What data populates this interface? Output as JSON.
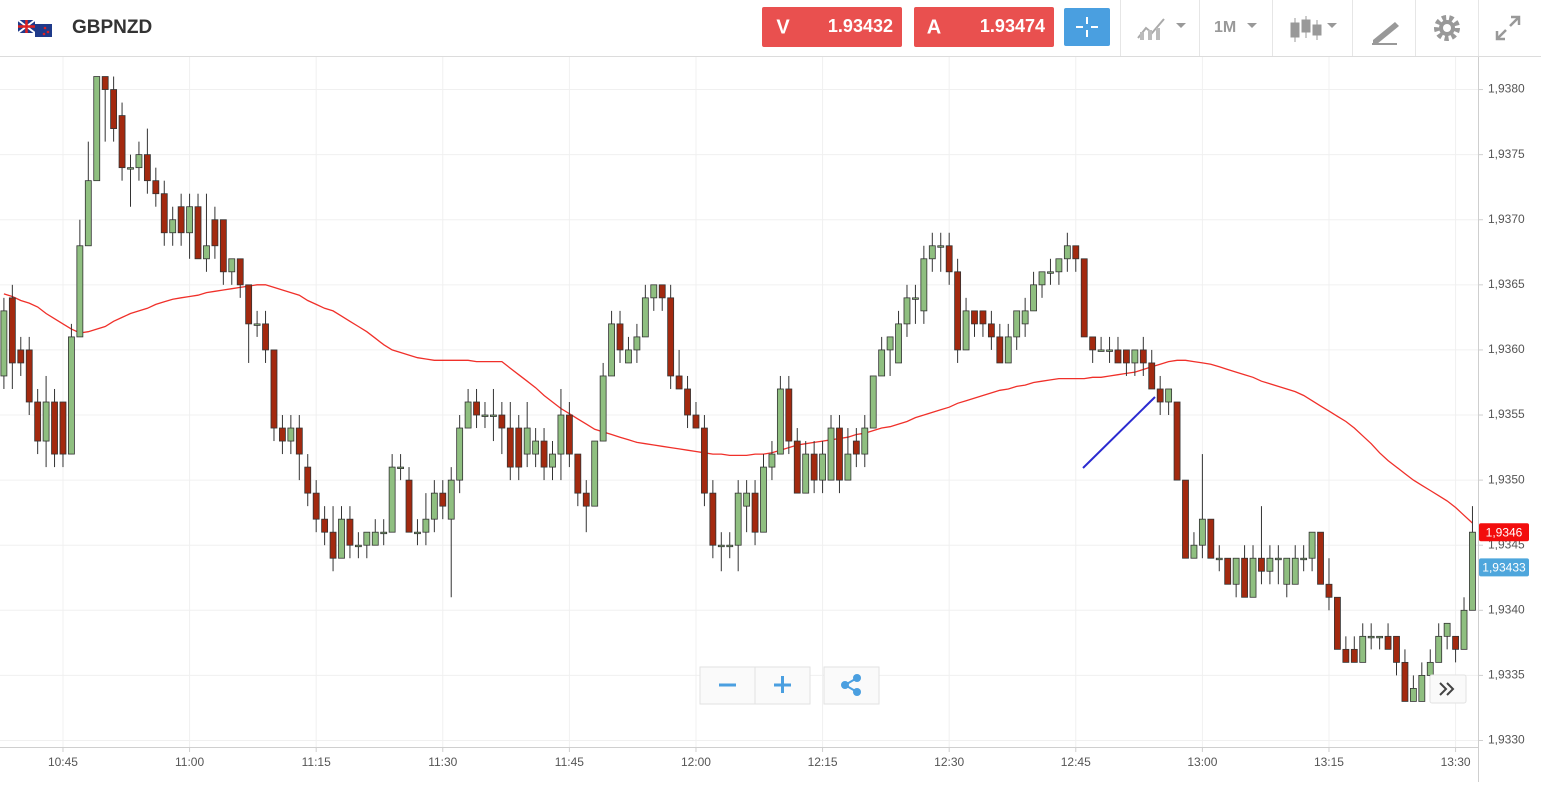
{
  "toolbar": {
    "symbol": "GBPNZD",
    "sell_label": "V",
    "sell_price": 1.93432,
    "buy_label": "A",
    "buy_price": 1.93474,
    "timeframe": "1M"
  },
  "chart_data": {
    "type": "candlestick",
    "up_color": "#8fbf80",
    "down_color": "#a3290f",
    "grid": true,
    "x": [
      "10:38",
      "10:39",
      "10:40",
      "10:41",
      "10:42",
      "10:43",
      "10:44",
      "10:45",
      "10:46",
      "10:47",
      "10:48",
      "10:49",
      "10:50",
      "10:51",
      "10:52",
      "10:53",
      "10:54",
      "10:55",
      "10:56",
      "10:57",
      "10:58",
      "10:59",
      "11:00",
      "11:01",
      "11:02",
      "11:03",
      "11:04",
      "11:05",
      "11:06",
      "11:07",
      "11:08",
      "11:09",
      "11:10",
      "11:11",
      "11:12",
      "11:13",
      "11:14",
      "11:15",
      "11:16",
      "11:17",
      "11:18",
      "11:19",
      "11:20",
      "11:21",
      "11:22",
      "11:23",
      "11:24",
      "11:25",
      "11:26",
      "11:27",
      "11:28",
      "11:29",
      "11:30",
      "11:31",
      "11:32",
      "11:33",
      "11:34",
      "11:35",
      "11:36",
      "11:37",
      "11:38",
      "11:39",
      "11:40",
      "11:41",
      "11:42",
      "11:43",
      "11:44",
      "11:45",
      "11:46",
      "11:47",
      "11:48",
      "11:49",
      "11:50",
      "11:51",
      "11:52",
      "11:53",
      "11:54",
      "11:55",
      "11:56",
      "11:57",
      "11:58",
      "11:59",
      "12:00",
      "12:01",
      "12:02",
      "12:03",
      "12:04",
      "12:05",
      "12:06",
      "12:07",
      "12:08",
      "12:09",
      "12:10",
      "12:11",
      "12:12",
      "12:13",
      "12:14",
      "12:15",
      "12:16",
      "12:17",
      "12:18",
      "12:19",
      "12:20",
      "12:21",
      "12:22",
      "12:23",
      "12:24",
      "12:25",
      "12:26",
      "12:27",
      "12:28",
      "12:29",
      "12:30",
      "12:31",
      "12:32",
      "12:33",
      "12:34",
      "12:35",
      "12:36",
      "12:37",
      "12:38",
      "12:39",
      "12:40",
      "12:41",
      "12:42",
      "12:43",
      "12:44",
      "12:45",
      "12:46",
      "12:47",
      "12:48",
      "12:49",
      "12:50",
      "12:51",
      "12:52",
      "12:53",
      "12:54",
      "12:55",
      "12:56",
      "12:57",
      "12:58",
      "12:59",
      "13:00",
      "13:01",
      "13:02",
      "13:03",
      "13:04",
      "13:05",
      "13:06",
      "13:07",
      "13:08",
      "13:09",
      "13:10",
      "13:11",
      "13:12",
      "13:13",
      "13:14",
      "13:15",
      "13:16",
      "13:17",
      "13:18",
      "13:19",
      "13:20",
      "13:21",
      "13:22",
      "13:23",
      "13:24",
      "13:25",
      "13:26",
      "13:27",
      "13:28",
      "13:29",
      "13:30",
      "13:31",
      "13:32"
    ],
    "open": [
      1.9358,
      1.9364,
      1.936,
      1.936,
      1.9356,
      1.9353,
      1.9356,
      1.9356,
      1.9352,
      1.9361,
      1.9368,
      1.9373,
      1.9381,
      1.938,
      1.9378,
      1.9374,
      1.9374,
      1.9375,
      1.9373,
      1.9372,
      1.9369,
      1.9371,
      1.9369,
      1.9371,
      1.9367,
      1.937,
      1.937,
      1.9366,
      1.9367,
      1.9365,
      1.9362,
      1.9362,
      1.936,
      1.9354,
      1.9353,
      1.9354,
      1.9351,
      1.9349,
      1.9347,
      1.9346,
      1.9344,
      1.9347,
      1.9345,
      1.9345,
      1.9345,
      1.9346,
      1.9346,
      1.9351,
      1.935,
      1.9346,
      1.9346,
      1.9347,
      1.9349,
      1.9347,
      1.935,
      1.9354,
      1.9356,
      1.9355,
      1.9355,
      1.9355,
      1.9354,
      1.9354,
      1.9352,
      1.9352,
      1.9353,
      1.9351,
      1.9352,
      1.9355,
      1.9352,
      1.9349,
      1.9348,
      1.9353,
      1.9358,
      1.9362,
      1.9359,
      1.936,
      1.9361,
      1.9364,
      1.9365,
      1.9364,
      1.9358,
      1.9357,
      1.9355,
      1.9354,
      1.9349,
      1.9345,
      1.9345,
      1.9345,
      1.9348,
      1.9349,
      1.9346,
      1.9351,
      1.9352,
      1.9357,
      1.9353,
      1.9349,
      1.9352,
      1.935,
      1.935,
      1.9354,
      1.935,
      1.9353,
      1.9352,
      1.9354,
      1.9358,
      1.936,
      1.9359,
      1.9362,
      1.9364,
      1.9363,
      1.9367,
      1.9368,
      1.9368,
      1.9366,
      1.936,
      1.9363,
      1.9363,
      1.9362,
      1.9361,
      1.9359,
      1.9361,
      1.9362,
      1.9363,
      1.9365,
      1.9366,
      1.9366,
      1.9367,
      1.9368,
      1.9367,
      1.9361,
      1.936,
      1.936,
      1.936,
      1.936,
      1.9359,
      1.936,
      1.9359,
      1.9357,
      1.9356,
      1.9356,
      1.935,
      1.9344,
      1.9345,
      1.9347,
      1.9344,
      1.9344,
      1.9342,
      1.9344,
      1.9341,
      1.9344,
      1.9343,
      1.9344,
      1.9342,
      1.9342,
      1.9344,
      1.9344,
      1.9346,
      1.9342,
      1.9341,
      1.9337,
      1.9337,
      1.9336,
      1.9338,
      1.9338,
      1.9338,
      1.9338,
      1.9336,
      1.9333,
      1.9333,
      1.9335,
      1.9336,
      1.9338,
      1.9338,
      1.9337,
      1.934
    ],
    "high": [
      1.9364,
      1.9365,
      1.9361,
      1.9361,
      1.9357,
      1.9358,
      1.9357,
      1.9356,
      1.9362,
      1.937,
      1.9376,
      1.9381,
      1.9381,
      1.9381,
      1.9379,
      1.9375,
      1.9376,
      1.9377,
      1.9374,
      1.9373,
      1.9371,
      1.9372,
      1.9372,
      1.9372,
      1.9372,
      1.9371,
      1.937,
      1.9367,
      1.9367,
      1.9365,
      1.9363,
      1.9363,
      1.936,
      1.9355,
      1.9355,
      1.9355,
      1.9352,
      1.935,
      1.9348,
      1.9348,
      1.9348,
      1.9348,
      1.9346,
      1.9346,
      1.9347,
      1.9347,
      1.9352,
      1.9352,
      1.9351,
      1.9347,
      1.9349,
      1.935,
      1.935,
      1.9351,
      1.9355,
      1.9357,
      1.9357,
      1.9356,
      1.9357,
      1.9356,
      1.9356,
      1.9355,
      1.9356,
      1.9354,
      1.9354,
      1.9353,
      1.9357,
      1.9356,
      1.9352,
      1.935,
      1.9353,
      1.9359,
      1.9363,
      1.9363,
      1.9361,
      1.9362,
      1.9365,
      1.9365,
      1.9365,
      1.9365,
      1.936,
      1.9358,
      1.9356,
      1.9355,
      1.935,
      1.9346,
      1.9346,
      1.935,
      1.935,
      1.935,
      1.9352,
      1.9353,
      1.9358,
      1.9358,
      1.9354,
      1.9353,
      1.9353,
      1.9353,
      1.9355,
      1.9355,
      1.9354,
      1.9354,
      1.9355,
      1.9358,
      1.9361,
      1.9361,
      1.9363,
      1.9365,
      1.9365,
      1.9368,
      1.9369,
      1.9369,
      1.9369,
      1.9367,
      1.9364,
      1.9363,
      1.9363,
      1.9363,
      1.9362,
      1.9362,
      1.9363,
      1.9364,
      1.9366,
      1.9366,
      1.9367,
      1.9367,
      1.9369,
      1.9368,
      1.9367,
      1.9361,
      1.9361,
      1.9361,
      1.9361,
      1.936,
      1.936,
      1.9361,
      1.936,
      1.9358,
      1.9357,
      1.9356,
      1.935,
      1.9346,
      1.9352,
      1.9347,
      1.9345,
      1.9344,
      1.9344,
      1.9345,
      1.9345,
      1.9348,
      1.9345,
      1.9345,
      1.9344,
      1.9345,
      1.9345,
      1.9346,
      1.9346,
      1.9344,
      1.9341,
      1.9338,
      1.9338,
      1.9339,
      1.9339,
      1.9338,
      1.9339,
      1.9338,
      1.9337,
      1.9335,
      1.9336,
      1.9337,
      1.9339,
      1.9339,
      1.9338,
      1.9341,
      1.9348
    ],
    "low": [
      1.9357,
      1.9357,
      1.9358,
      1.9355,
      1.9352,
      1.9351,
      1.9351,
      1.9351,
      1.9352,
      1.9361,
      1.9368,
      1.9373,
      1.9376,
      1.9376,
      1.9373,
      1.9371,
      1.9373,
      1.9372,
      1.9371,
      1.9368,
      1.9368,
      1.9368,
      1.9367,
      1.9367,
      1.9366,
      1.9367,
      1.9365,
      1.9365,
      1.9364,
      1.9359,
      1.9361,
      1.9359,
      1.9353,
      1.9352,
      1.9352,
      1.935,
      1.9348,
      1.9346,
      1.9345,
      1.9343,
      1.9344,
      1.9344,
      1.9344,
      1.9344,
      1.9345,
      1.9345,
      1.9346,
      1.935,
      1.9346,
      1.9345,
      1.9345,
      1.9346,
      1.9347,
      1.9341,
      1.9349,
      1.9354,
      1.9354,
      1.9354,
      1.9353,
      1.9352,
      1.935,
      1.935,
      1.9351,
      1.9351,
      1.935,
      1.935,
      1.935,
      1.9351,
      1.9348,
      1.9346,
      1.9348,
      1.9353,
      1.9358,
      1.9359,
      1.9359,
      1.9359,
      1.9361,
      1.9363,
      1.9363,
      1.9357,
      1.9357,
      1.9354,
      1.9354,
      1.9348,
      1.9344,
      1.9343,
      1.9344,
      1.9343,
      1.9346,
      1.9345,
      1.9346,
      1.935,
      1.9352,
      1.9352,
      1.9349,
      1.9349,
      1.9349,
      1.9349,
      1.935,
      1.9349,
      1.935,
      1.9351,
      1.9351,
      1.9354,
      1.9358,
      1.9358,
      1.9359,
      1.9361,
      1.9362,
      1.9362,
      1.9366,
      1.9366,
      1.9365,
      1.9359,
      1.936,
      1.9361,
      1.9361,
      1.936,
      1.9359,
      1.9359,
      1.936,
      1.9361,
      1.9363,
      1.9364,
      1.9365,
      1.9365,
      1.9366,
      1.9366,
      1.9361,
      1.9359,
      1.936,
      1.9359,
      1.9359,
      1.9358,
      1.9358,
      1.9358,
      1.9357,
      1.9355,
      1.9355,
      1.935,
      1.9344,
      1.9344,
      1.9344,
      1.9344,
      1.9343,
      1.9342,
      1.9341,
      1.9341,
      1.9341,
      1.9342,
      1.9342,
      1.9342,
      1.9341,
      1.9342,
      1.9343,
      1.9343,
      1.9342,
      1.934,
      1.9337,
      1.9336,
      1.9336,
      1.9336,
      1.9337,
      1.9337,
      1.9337,
      1.9335,
      1.9333,
      1.9333,
      1.9333,
      1.9334,
      1.9336,
      1.9337,
      1.9336,
      1.9337,
      1.934
    ],
    "close": [
      1.9363,
      1.9359,
      1.9359,
      1.9356,
      1.9353,
      1.9356,
      1.9352,
      1.9352,
      1.9361,
      1.9368,
      1.9373,
      1.9381,
      1.938,
      1.9377,
      1.9374,
      1.9374,
      1.9375,
      1.9373,
      1.9372,
      1.9369,
      1.937,
      1.9369,
      1.9371,
      1.9367,
      1.9368,
      1.9368,
      1.9366,
      1.9367,
      1.9365,
      1.9362,
      1.9362,
      1.936,
      1.9354,
      1.9353,
      1.9354,
      1.9352,
      1.9349,
      1.9347,
      1.9346,
      1.9344,
      1.9347,
      1.9345,
      1.9345,
      1.9346,
      1.9346,
      1.9346,
      1.9351,
      1.9351,
      1.9346,
      1.9346,
      1.9347,
      1.9349,
      1.9348,
      1.935,
      1.9354,
      1.9356,
      1.9355,
      1.9355,
      1.9355,
      1.9354,
      1.9351,
      1.9351,
      1.9354,
      1.9353,
      1.9351,
      1.9352,
      1.9355,
      1.9352,
      1.9349,
      1.9348,
      1.9353,
      1.9358,
      1.9362,
      1.936,
      1.936,
      1.9361,
      1.9364,
      1.9365,
      1.9364,
      1.9358,
      1.9357,
      1.9355,
      1.9354,
      1.9349,
      1.9345,
      1.9345,
      1.9345,
      1.9349,
      1.9349,
      1.9346,
      1.9351,
      1.9352,
      1.9357,
      1.9353,
      1.9349,
      1.9352,
      1.935,
      1.9352,
      1.9354,
      1.935,
      1.9352,
      1.9352,
      1.9354,
      1.9358,
      1.936,
      1.9361,
      1.9362,
      1.9364,
      1.9364,
      1.9367,
      1.9368,
      1.9368,
      1.9366,
      1.936,
      1.9363,
      1.9362,
      1.9362,
      1.9361,
      1.9359,
      1.9361,
      1.9363,
      1.9363,
      1.9365,
      1.9366,
      1.9366,
      1.9367,
      1.9368,
      1.9367,
      1.9361,
      1.936,
      1.936,
      1.936,
      1.9359,
      1.9359,
      1.936,
      1.9359,
      1.9357,
      1.9356,
      1.9357,
      1.935,
      1.9344,
      1.9345,
      1.9347,
      1.9344,
      1.9344,
      1.9342,
      1.9344,
      1.9341,
      1.9344,
      1.9343,
      1.9344,
      1.9344,
      1.9344,
      1.9344,
      1.9344,
      1.9346,
      1.9342,
      1.9341,
      1.9337,
      1.9336,
      1.9336,
      1.9338,
      1.9338,
      1.9338,
      1.9337,
      1.9336,
      1.9333,
      1.9334,
      1.9335,
      1.9336,
      1.9338,
      1.9339,
      1.9337,
      1.934,
      1.9346
    ],
    "moving_average": {
      "color": "#f0302a",
      "values": [
        1.93643,
        1.93641,
        1.93638,
        1.93636,
        1.93633,
        1.93628,
        1.93624,
        1.9362,
        1.93616,
        1.93613,
        1.93614,
        1.93616,
        1.93618,
        1.93622,
        1.93625,
        1.93628,
        1.9363,
        1.93632,
        1.93635,
        1.93637,
        1.93639,
        1.9364,
        1.93641,
        1.93642,
        1.93644,
        1.93645,
        1.93646,
        1.93647,
        1.93648,
        1.93649,
        1.9365,
        1.9365,
        1.93648,
        1.93646,
        1.93644,
        1.93642,
        1.93638,
        1.93635,
        1.93632,
        1.9363,
        1.93626,
        1.93622,
        1.93618,
        1.93614,
        1.93609,
        1.93604,
        1.936,
        1.93598,
        1.93596,
        1.93594,
        1.93593,
        1.93592,
        1.93592,
        1.93592,
        1.93592,
        1.93592,
        1.93591,
        1.93591,
        1.93591,
        1.93591,
        1.93586,
        1.93581,
        1.93576,
        1.93571,
        1.93565,
        1.9356,
        1.93555,
        1.93551,
        1.93547,
        1.93543,
        1.93539,
        1.93537,
        1.93535,
        1.93533,
        1.93531,
        1.93529,
        1.93528,
        1.93527,
        1.93526,
        1.93525,
        1.93524,
        1.93523,
        1.93522,
        1.93521,
        1.9352,
        1.9352,
        1.93519,
        1.93519,
        1.93519,
        1.9352,
        1.9352,
        1.93521,
        1.93523,
        1.93525,
        1.93527,
        1.93528,
        1.93529,
        1.9353,
        1.93531,
        1.93532,
        1.93533,
        1.93535,
        1.93536,
        1.93538,
        1.9354,
        1.93541,
        1.93543,
        1.93545,
        1.93548,
        1.9355,
        1.93552,
        1.93554,
        1.93556,
        1.93559,
        1.93561,
        1.93563,
        1.93565,
        1.93567,
        1.93569,
        1.9357,
        1.93572,
        1.93573,
        1.93575,
        1.93576,
        1.93577,
        1.93578,
        1.93578,
        1.93578,
        1.93578,
        1.93579,
        1.93579,
        1.9358,
        1.93581,
        1.93582,
        1.93583,
        1.93585,
        1.93587,
        1.93589,
        1.93591,
        1.93592,
        1.93592,
        1.93591,
        1.9359,
        1.93589,
        1.93587,
        1.93585,
        1.93583,
        1.93581,
        1.93579,
        1.93576,
        1.93574,
        1.93572,
        1.9357,
        1.93568,
        1.93565,
        1.93561,
        1.93557,
        1.93553,
        1.93549,
        1.93545,
        1.9354,
        1.93534,
        1.93528,
        1.93521,
        1.93515,
        1.9351,
        1.93505,
        1.935,
        1.93496,
        1.93492,
        1.93488,
        1.93484,
        1.93479,
        1.93473,
        1.93467
      ]
    },
    "ylim": [
      1.93295,
      1.93825
    ],
    "yticks": [
      {
        "value": 1.933,
        "label": "1,9330"
      },
      {
        "value": 1.9335,
        "label": "1,9335"
      },
      {
        "value": 1.934,
        "label": "1,9340"
      },
      {
        "value": 1.9345,
        "label": "1,9345"
      },
      {
        "value": 1.935,
        "label": "1,9350"
      },
      {
        "value": 1.9355,
        "label": "1,9355"
      },
      {
        "value": 1.936,
        "label": "1,9360"
      },
      {
        "value": 1.9365,
        "label": "1,9365"
      },
      {
        "value": 1.937,
        "label": "1,9370"
      },
      {
        "value": 1.9375,
        "label": "1,9375"
      },
      {
        "value": 1.938,
        "label": "1,9380"
      }
    ],
    "xticks": [
      "10:45",
      "11:00",
      "11:15",
      "11:30",
      "11:45",
      "12:00",
      "12:15",
      "12:30",
      "12:45",
      "13:00",
      "13:15",
      "13:30"
    ],
    "price_markers": [
      {
        "value": 1.9346,
        "label": "1,9346",
        "color": "#f20d0d"
      },
      {
        "value": 1.93433,
        "label": "1,93433",
        "color": "#4ea6dc"
      }
    ]
  }
}
